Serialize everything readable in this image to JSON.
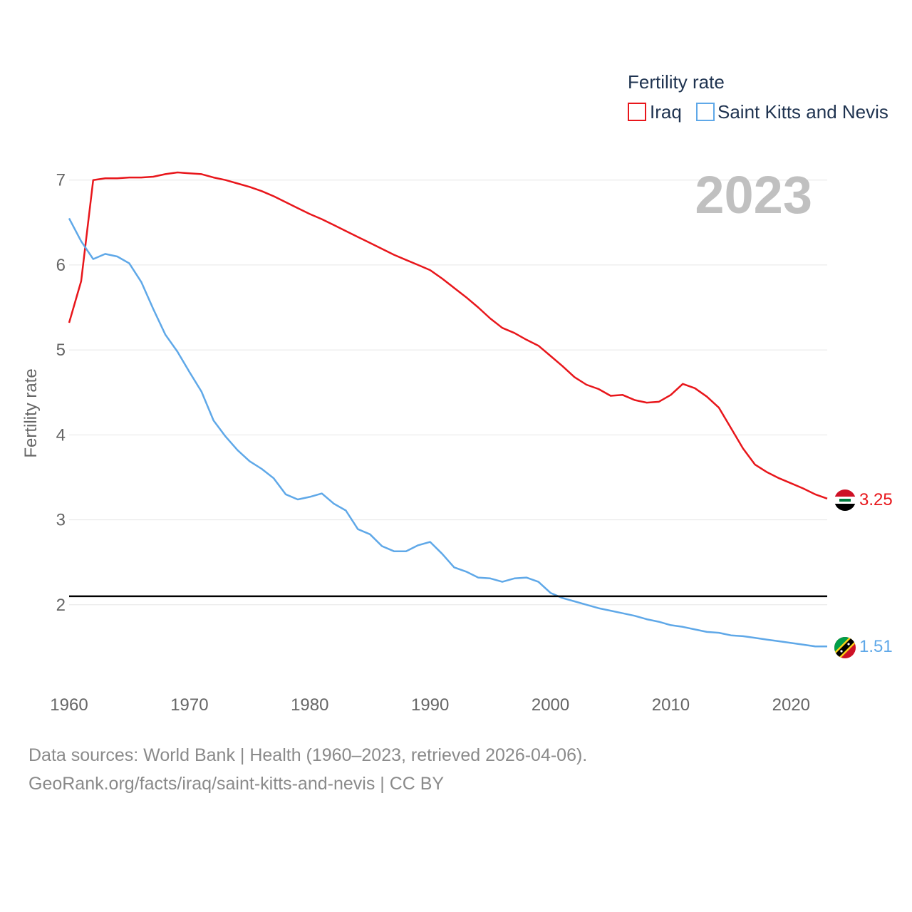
{
  "chart_data": {
    "type": "line",
    "title": "",
    "ylabel": "Fertility rate",
    "xlabel": "",
    "xlim": [
      1960,
      2023
    ],
    "ylim": [
      1.0,
      7.35
    ],
    "x_ticks": [
      1960,
      1970,
      1980,
      1990,
      2000,
      2010,
      2020
    ],
    "y_ticks": [
      2,
      3,
      4,
      5,
      6,
      7
    ],
    "reference_line": 2.1,
    "legend": {
      "title": "Fertility rate",
      "placement": "top-right"
    },
    "current_year_label": "2023",
    "x": [
      1960,
      1961,
      1962,
      1963,
      1964,
      1965,
      1966,
      1967,
      1968,
      1969,
      1970,
      1971,
      1972,
      1973,
      1974,
      1975,
      1976,
      1977,
      1978,
      1979,
      1980,
      1981,
      1982,
      1983,
      1984,
      1985,
      1986,
      1987,
      1988,
      1989,
      1990,
      1991,
      1992,
      1993,
      1994,
      1995,
      1996,
      1997,
      1998,
      1999,
      2000,
      2001,
      2002,
      2003,
      2004,
      2005,
      2006,
      2007,
      2008,
      2009,
      2010,
      2011,
      2012,
      2013,
      2014,
      2015,
      2016,
      2017,
      2018,
      2019,
      2020,
      2021,
      2022,
      2023
    ],
    "series": [
      {
        "name": "Iraq",
        "color": "#e8161b",
        "end_label": "3.25",
        "flag_icon": "iraq-flag-icon",
        "values": [
          5.32,
          5.81,
          7.0,
          7.02,
          7.02,
          7.03,
          7.03,
          7.04,
          7.07,
          7.09,
          7.08,
          7.07,
          7.03,
          7.0,
          6.96,
          6.92,
          6.87,
          6.81,
          6.74,
          6.67,
          6.6,
          6.54,
          6.47,
          6.4,
          6.33,
          6.26,
          6.19,
          6.12,
          6.06,
          6.0,
          5.94,
          5.84,
          5.73,
          5.62,
          5.5,
          5.37,
          5.26,
          5.2,
          5.12,
          5.05,
          4.93,
          4.81,
          4.68,
          4.59,
          4.54,
          4.46,
          4.47,
          4.41,
          4.38,
          4.39,
          4.47,
          4.6,
          4.55,
          4.45,
          4.32,
          4.08,
          3.84,
          3.65,
          3.56,
          3.49,
          3.43,
          3.37,
          3.3,
          3.25
        ]
      },
      {
        "name": "Saint Kitts and Nevis",
        "color": "#5fa8e8",
        "end_label": "1.51",
        "flag_icon": "saint-kitts-and-nevis-flag-icon",
        "values": [
          6.55,
          6.28,
          6.07,
          6.13,
          6.1,
          6.02,
          5.8,
          5.48,
          5.18,
          4.98,
          4.74,
          4.51,
          4.17,
          3.98,
          3.82,
          3.69,
          3.6,
          3.49,
          3.3,
          3.24,
          3.27,
          3.31,
          3.19,
          3.11,
          2.89,
          2.83,
          2.69,
          2.63,
          2.63,
          2.7,
          2.74,
          2.6,
          2.44,
          2.39,
          2.32,
          2.31,
          2.27,
          2.31,
          2.32,
          2.27,
          2.14,
          2.08,
          2.04,
          2.0,
          1.96,
          1.93,
          1.9,
          1.87,
          1.83,
          1.8,
          1.76,
          1.74,
          1.71,
          1.68,
          1.67,
          1.64,
          1.63,
          1.61,
          1.59,
          1.57,
          1.55,
          1.53,
          1.51,
          1.51
        ]
      }
    ]
  },
  "footer": {
    "line1": "Data sources: World Bank | Health (1960–2023, retrieved 2026-04-06).",
    "line2": "GeoRank.org/facts/iraq/saint-kitts-and-nevis | CC BY"
  }
}
